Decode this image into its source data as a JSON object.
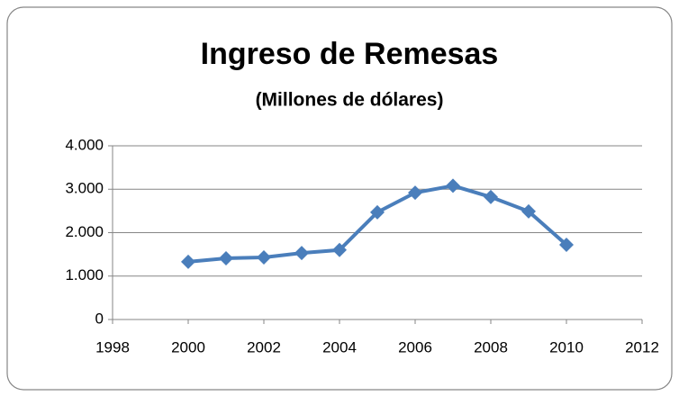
{
  "chart_data": {
    "type": "line",
    "title": "Ingreso de Remesas",
    "subtitle": "(Millones de dólares)",
    "x": [
      2000,
      2001,
      2002,
      2003,
      2004,
      2005,
      2006,
      2007,
      2008,
      2009,
      2010
    ],
    "series": [
      {
        "color": "#4a7ebb",
        "values": [
          1330,
          1410,
          1430,
          1530,
          1600,
          2470,
          2920,
          3080,
          2820,
          2490,
          1720
        ]
      }
    ],
    "xlim": [
      1998,
      2012
    ],
    "xticks": [
      1998,
      2000,
      2002,
      2004,
      2006,
      2008,
      2010,
      2012
    ],
    "ylim": [
      0,
      4000
    ],
    "yticks": [
      0,
      {
        "value": 1000,
        "label": "1.000"
      },
      {
        "value": 2000,
        "label": "2.000"
      },
      {
        "value": 3000,
        "label": "3.000"
      },
      {
        "value": 4000,
        "label": "4.000"
      }
    ],
    "grid": true
  }
}
